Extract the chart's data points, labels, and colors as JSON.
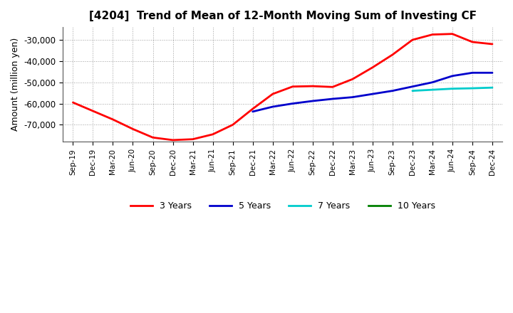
{
  "title": "[4204]  Trend of Mean of 12-Month Moving Sum of Investing CF",
  "ylabel": "Amount (million yen)",
  "background_color": "#ffffff",
  "plot_background": "#ffffff",
  "grid_color": "#888888",
  "ylim": [
    -78000,
    -24000
  ],
  "yticks": [
    -70000,
    -60000,
    -50000,
    -40000,
    -30000
  ],
  "x_labels": [
    "Sep-19",
    "Dec-19",
    "Mar-20",
    "Jun-20",
    "Sep-20",
    "Dec-20",
    "Mar-21",
    "Jun-21",
    "Sep-21",
    "Dec-21",
    "Mar-22",
    "Jun-22",
    "Sep-22",
    "Dec-22",
    "Mar-23",
    "Jun-23",
    "Sep-23",
    "Dec-23",
    "Mar-24",
    "Jun-24",
    "Sep-24",
    "Dec-24"
  ],
  "series": {
    "3 Years": {
      "color": "#ff0000",
      "linewidth": 2.0,
      "data_x": [
        0,
        1,
        2,
        3,
        4,
        5,
        6,
        7,
        8,
        9,
        10,
        11,
        12,
        13,
        14,
        15,
        16,
        17,
        18,
        19,
        20,
        21
      ],
      "data_y": [
        -59500,
        -63500,
        -67500,
        -72000,
        -76000,
        -77200,
        -76800,
        -74500,
        -70000,
        -62500,
        -55500,
        -52000,
        -51800,
        -52200,
        -48500,
        -43000,
        -37000,
        -30000,
        -27500,
        -27200,
        -31000,
        -32000
      ]
    },
    "5 Years": {
      "color": "#0000cc",
      "linewidth": 2.0,
      "data_x": [
        9,
        10,
        11,
        12,
        13,
        14,
        15,
        16,
        17,
        18,
        19,
        20,
        21
      ],
      "data_y": [
        -63800,
        -61500,
        -60000,
        -58800,
        -57800,
        -57000,
        -55500,
        -54000,
        -52000,
        -50000,
        -47000,
        -45500,
        -45500
      ]
    },
    "7 Years": {
      "color": "#00cccc",
      "linewidth": 2.0,
      "data_x": [
        17,
        18,
        19,
        20,
        21
      ],
      "data_y": [
        -54000,
        -53500,
        -53000,
        -52800,
        -52500
      ]
    },
    "10 Years": {
      "color": "#008000",
      "linewidth": 2.0,
      "data_x": [],
      "data_y": []
    }
  },
  "legend_labels": [
    "3 Years",
    "5 Years",
    "7 Years",
    "10 Years"
  ],
  "legend_colors": [
    "#ff0000",
    "#0000cc",
    "#00cccc",
    "#008000"
  ]
}
